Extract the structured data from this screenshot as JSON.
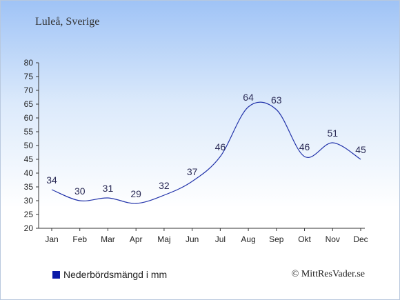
{
  "header": {
    "title": "Luleå, Sverige"
  },
  "chart_data": {
    "type": "line",
    "categories": [
      "Jan",
      "Feb",
      "Mar",
      "Apr",
      "Maj",
      "Jun",
      "Jul",
      "Aug",
      "Sep",
      "Okt",
      "Nov",
      "Dec"
    ],
    "series": [
      {
        "name": "Nederbördsmängd i mm",
        "values": [
          34,
          30,
          31,
          29,
          32,
          37,
          46,
          64,
          63,
          46,
          51,
          45
        ],
        "color": "#2233aa"
      }
    ],
    "ylim": [
      20,
      80
    ],
    "yticks": [
      "20",
      "25",
      "30",
      "35",
      "40",
      "45",
      "50",
      "55",
      "60",
      "65",
      "70",
      "75",
      "80"
    ],
    "title": "",
    "xlabel": "",
    "ylabel": "",
    "grid": false,
    "legend": "bottom-left"
  },
  "legend": {
    "label": "Nederbördsmängd i mm",
    "color": "#0a1aa8"
  },
  "credit": {
    "text": "© MittResVader.se"
  }
}
